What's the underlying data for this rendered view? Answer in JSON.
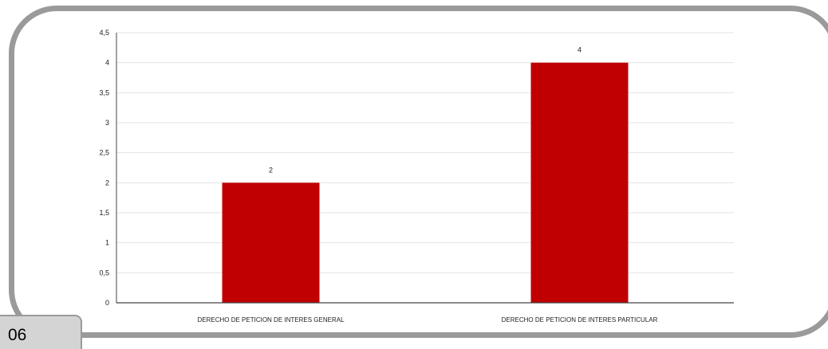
{
  "page": {
    "number": "06"
  },
  "colors": {
    "bar": "#c00000",
    "frame": "#9a9a9a",
    "grid": "#e3e3e3",
    "axis": "#444444"
  },
  "chart_data": {
    "type": "bar",
    "categories": [
      "DERECHO DE PETICION DE INTERES GENERAL",
      "DERECHO DE PETICION DE INTERES PARTICULAR"
    ],
    "values": [
      2,
      4
    ],
    "data_labels": [
      "2",
      "4"
    ],
    "ylim": [
      0,
      4.5
    ],
    "y_ticks": [
      0,
      0.5,
      1,
      1.5,
      2,
      2.5,
      3,
      3.5,
      4,
      4.5
    ],
    "y_tick_labels": [
      "0",
      "0,5",
      "1",
      "1,5",
      "2",
      "2,5",
      "3",
      "3,5",
      "4",
      "4,5"
    ],
    "grid": true,
    "legend": "none",
    "title": "",
    "xlabel": "",
    "ylabel": ""
  }
}
